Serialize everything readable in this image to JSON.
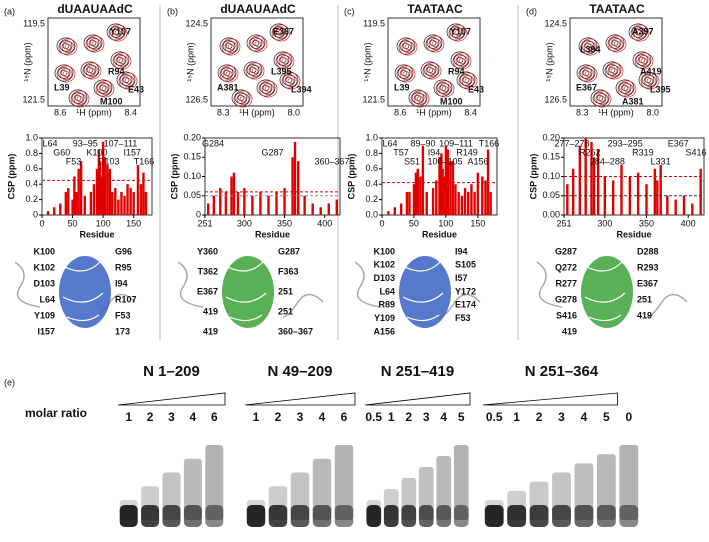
{
  "panels": [
    {
      "letter": "(a)",
      "title": "dUAAUAAdC",
      "nmr": {
        "y_ticks": [
          "119.5",
          "121.5"
        ],
        "x_ticks": [
          "8.6",
          "8.4"
        ],
        "y_label": "¹⁵N (ppm)",
        "x_label": "¹H (ppm)",
        "peaks": [
          "Y107",
          "R94",
          "L39",
          "E43",
          "M100"
        ]
      },
      "csp": {
        "y_label": "CSP (ppm)",
        "x_label": "Residue",
        "xlim": [
          0,
          180
        ],
        "ylim": [
          0,
          1
        ],
        "xticks": [
          0,
          50,
          100,
          150
        ],
        "yticks": [
          0,
          0.2,
          0.4,
          0.6,
          0.8,
          {
            "value": 1,
            "label": "1.0"
          }
        ],
        "thresholds": [
          {
            "value": 0.45,
            "color": "#e00000"
          }
        ],
        "bar_color": "#e00000",
        "residues": [
          10,
          20,
          30,
          39,
          43,
          50,
          53,
          56,
          60,
          64,
          70,
          80,
          85,
          90,
          93,
          95,
          98,
          100,
          103,
          107,
          111,
          115,
          120,
          125,
          130,
          135,
          140,
          145,
          150,
          157,
          162,
          166,
          170
        ],
        "values": [
          0.05,
          0.1,
          0.15,
          0.3,
          0.35,
          0.2,
          0.5,
          0.3,
          0.6,
          0.7,
          0.25,
          0.3,
          0.4,
          0.6,
          0.85,
          0.7,
          0.5,
          0.95,
          0.75,
          0.65,
          0.6,
          0.3,
          0.35,
          0.2,
          0.3,
          0.25,
          0.4,
          0.35,
          0.3,
          0.65,
          0.4,
          0.55,
          0.3
        ],
        "annotations": [
          "L64",
          "G60",
          "F53",
          "93–95",
          "K100",
          "D103",
          "107–111",
          "I157",
          "T166"
        ]
      },
      "structure_labels": [
        "K100",
        "G96",
        "K102",
        "R95",
        "D103",
        "I94",
        "L64",
        "R107",
        "Y109",
        "F53",
        "I157",
        "173"
      ]
    },
    {
      "letter": "(b)",
      "title": "dUAAUAAdC",
      "nmr": {
        "y_ticks": [
          "124.5",
          "126.5"
        ],
        "x_ticks": [
          "8.3",
          "8.0"
        ],
        "y_label": "¹⁵N (ppm)",
        "x_label": "¹H (ppm)",
        "peaks": [
          "E367",
          "L395",
          "A381",
          "L394"
        ]
      },
      "csp": {
        "y_label": "CSP (ppm)",
        "x_label": "Residue",
        "xlim": [
          251,
          419
        ],
        "ylim": [
          0,
          0.2
        ],
        "xticks": [
          251,
          300,
          350,
          400
        ],
        "yticks": [
          0,
          0.05,
          {
            "value": 0.1,
            "label": "0.10"
          },
          0.15,
          {
            "value": 0.2,
            "label": "0.20"
          }
        ],
        "thresholds": [
          {
            "value": 0.06,
            "color": "#e00000"
          },
          {
            "value": 0.05,
            "color": "#888888"
          }
        ],
        "bar_color": "#e00000",
        "residues": [
          255,
          262,
          270,
          277,
          284,
          287,
          292,
          300,
          310,
          320,
          330,
          340,
          350,
          360,
          363,
          367,
          375,
          385,
          395,
          405,
          415
        ],
        "values": [
          0.03,
          0.05,
          0.07,
          0.06,
          0.1,
          0.11,
          0.06,
          0.07,
          0.05,
          0.06,
          0.05,
          0.06,
          0.07,
          0.15,
          0.19,
          0.14,
          0.05,
          0.03,
          0.02,
          0.03,
          0.04
        ],
        "annotations": [
          "G284",
          "G287",
          "360–367"
        ]
      },
      "structure_labels": [
        "Y360",
        "G287",
        "T362",
        "F363",
        "E367",
        "251",
        "419",
        "251",
        "419",
        "360–367"
      ]
    },
    {
      "letter": "(c)",
      "title": "TAATAAC",
      "nmr": {
        "y_ticks": [
          "119.5",
          "121.5"
        ],
        "x_ticks": [
          "8.6",
          "8.4"
        ],
        "y_label": "¹⁵N (ppm)",
        "x_label": "¹H (ppm)",
        "peaks": [
          "Y107",
          "R94",
          "L39",
          "E43",
          "M100"
        ]
      },
      "csp": {
        "y_label": "CSP (ppm)",
        "x_label": "Residue",
        "xlim": [
          0,
          180
        ],
        "ylim": [
          0,
          1
        ],
        "xticks": [
          0,
          50,
          100,
          150
        ],
        "yticks": [
          {
            "value": 0,
            "label": "0.0"
          },
          0.2,
          0.4,
          0.6,
          0.8,
          {
            "value": 1,
            "label": "1.0"
          }
        ],
        "thresholds": [
          {
            "value": 0.42,
            "color": "#e00000"
          }
        ],
        "bar_color": "#e00000",
        "residues": [
          10,
          20,
          30,
          39,
          43,
          50,
          53,
          56,
          60,
          64,
          70,
          80,
          85,
          90,
          93,
          95,
          98,
          100,
          103,
          107,
          111,
          115,
          120,
          125,
          130,
          135,
          140,
          145,
          150,
          157,
          162,
          166,
          170
        ],
        "values": [
          0.05,
          0.1,
          0.15,
          0.3,
          0.3,
          0.4,
          0.55,
          0.6,
          0.5,
          0.9,
          0.3,
          0.35,
          0.45,
          0.75,
          0.8,
          0.6,
          0.5,
          0.9,
          0.85,
          0.7,
          0.7,
          0.4,
          0.3,
          0.25,
          0.35,
          0.3,
          0.4,
          0.3,
          0.55,
          0.5,
          0.45,
          0.85,
          0.3
        ],
        "annotations": [
          "L64",
          "T57",
          "S51",
          "89–90",
          "I94",
          "100–105",
          "109–111",
          "R149",
          "A156",
          "T166"
        ]
      },
      "structure_labels": [
        "K100",
        "I94",
        "K102",
        "S105",
        "D103",
        "I57",
        "L64",
        "Y172",
        "R89",
        "E174",
        "Y109",
        "F53",
        "A156"
      ]
    },
    {
      "letter": "(d)",
      "title": "TAATAAC",
      "nmr": {
        "y_ticks": [
          "124.5",
          "126.5"
        ],
        "x_ticks": [
          "8.3",
          "8.0"
        ],
        "y_label": "¹⁵N (ppm)",
        "x_label": "¹H (ppm)",
        "peaks": [
          "A397",
          "A419",
          "E367",
          "L395",
          "A381",
          "L394"
        ]
      },
      "csp": {
        "y_label": "CSP (ppm)",
        "x_label": "Residue",
        "xlim": [
          251,
          419
        ],
        "ylim": [
          0,
          0.2
        ],
        "xticks": [
          251,
          300,
          350,
          400
        ],
        "yticks": [
          {
            "value": 0,
            "label": "0.00"
          },
          0.05,
          {
            "value": 0.1,
            "label": "0.10"
          },
          0.15,
          {
            "value": 0.2,
            "label": "0.20"
          }
        ],
        "thresholds": [
          {
            "value": 0.1,
            "color": "#e00000"
          },
          {
            "value": 0.05,
            "color": "#333333"
          }
        ],
        "bar_color": "#e00000",
        "residues": [
          255,
          262,
          270,
          277,
          284,
          287,
          292,
          300,
          310,
          320,
          330,
          340,
          350,
          360,
          363,
          367,
          375,
          385,
          395,
          405,
          415
        ],
        "values": [
          0.08,
          0.12,
          0.18,
          0.2,
          0.19,
          0.15,
          0.17,
          0.1,
          0.09,
          0.13,
          0.1,
          0.11,
          0.08,
          0.12,
          0.09,
          0.13,
          0.05,
          0.04,
          0.05,
          0.03,
          0.12
        ],
        "annotations": [
          "277–278",
          "R262",
          "284–288",
          "293–295",
          "R319",
          "L331",
          "E367",
          "S416"
        ]
      },
      "structure_labels": [
        "G287",
        "D288",
        "Q272",
        "R293",
        "R277",
        "E367",
        "G278",
        "251",
        "S416",
        "419",
        "419"
      ]
    }
  ],
  "gel": {
    "letter": "(e)",
    "row_label": "molar ratio",
    "groups": [
      {
        "name": "N 1–209",
        "ratios": [
          "1",
          "2",
          "3",
          "4",
          "6"
        ]
      },
      {
        "name": "N 49–209",
        "ratios": [
          "1",
          "2",
          "3",
          "4",
          "6"
        ]
      },
      {
        "name": "N 251–419",
        "ratios": [
          "0.5",
          "1",
          "2",
          "3",
          "4",
          "5"
        ]
      },
      {
        "name": "N 251–364",
        "ratios": [
          "0.5",
          "1",
          "2",
          "3",
          "4",
          "5",
          "0"
        ]
      }
    ]
  }
}
